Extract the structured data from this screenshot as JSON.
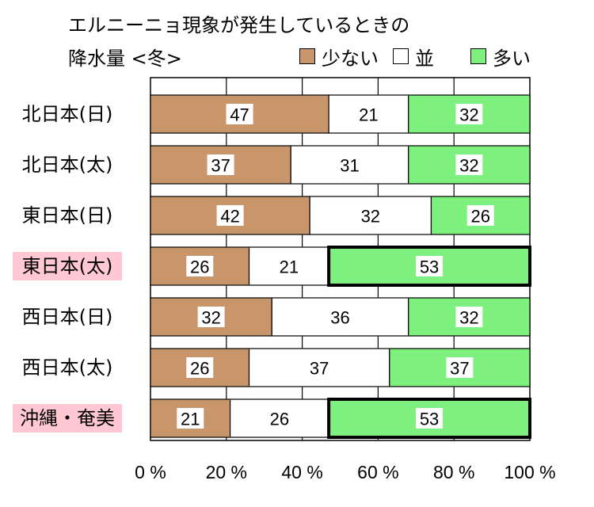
{
  "chart_data": {
    "type": "bar",
    "stacked": true,
    "orientation": "horizontal",
    "title_line1": "エルニーニョ現象が発生しているときの",
    "title_line2": "降水量 <冬>",
    "categories": [
      "北日本(日)",
      "北日本(太)",
      "東日本(日)",
      "東日本(太)",
      "西日本(日)",
      "西日本(太)",
      "沖縄・奄美"
    ],
    "highlighted_categories": [
      "東日本(太)",
      "沖縄・奄美"
    ],
    "bold_outlined": [
      {
        "category": "東日本(太)",
        "series": "多い"
      },
      {
        "category": "沖縄・奄美",
        "series": "多い"
      }
    ],
    "series": [
      {
        "name": "少ない",
        "color": "#C8966A",
        "values": [
          47,
          37,
          42,
          26,
          32,
          26,
          21
        ]
      },
      {
        "name": "並",
        "color": "#FFFFFF",
        "values": [
          21,
          31,
          32,
          21,
          36,
          37,
          26
        ]
      },
      {
        "name": "多い",
        "color": "#7EF07E",
        "values": [
          32,
          32,
          26,
          53,
          32,
          37,
          53
        ]
      }
    ],
    "xlim": [
      0,
      100
    ],
    "x_ticks": [
      "0 %",
      "20 %",
      "40 %",
      "60 %",
      "80 %",
      "100 %"
    ],
    "grid": "vertical",
    "legend_position": "top-right"
  },
  "colors": {
    "highlight_label_bg": "#FFC8D2"
  }
}
